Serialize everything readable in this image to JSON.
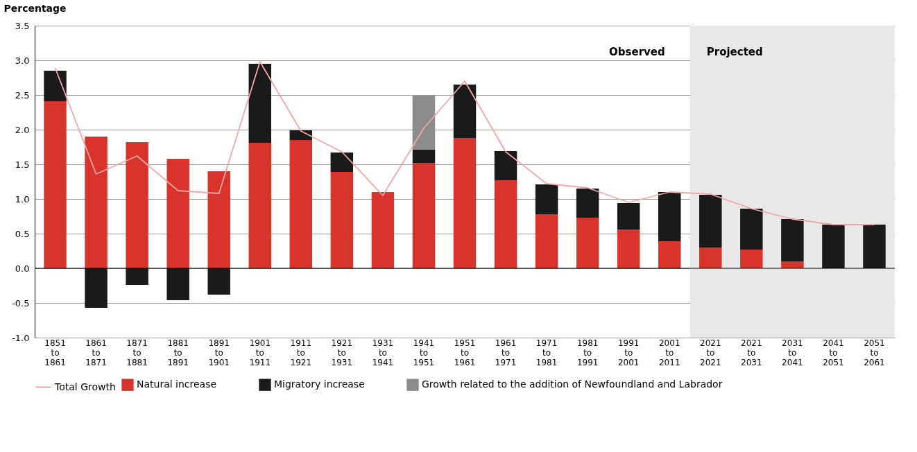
{
  "chart_data": {
    "type": "bar",
    "stacked": true,
    "ylabel": "Percentage",
    "categories": [
      "1851 to 1861",
      "1861 to 1871",
      "1871 to 1881",
      "1881 to 1891",
      "1891 to 1901",
      "1901 to 1911",
      "1911 to 1921",
      "1921 to 1931",
      "1931 to 1941",
      "1941 to 1951",
      "1951 to 1961",
      "1961 to 1971",
      "1971 to 1981",
      "1981 to 1991",
      "1991 to 2001",
      "2001 to 2011",
      "2021 to 2021",
      "2021 to 2031",
      "2031 to 2041",
      "2041 to 2051",
      "2051 to 2061"
    ],
    "series": [
      {
        "name": "Natural increase",
        "color": "#d9342b",
        "values": [
          2.41,
          1.9,
          1.82,
          1.58,
          1.4,
          1.81,
          1.85,
          1.39,
          1.1,
          1.52,
          1.88,
          1.27,
          0.78,
          0.73,
          0.56,
          0.39,
          0.3,
          0.27,
          0.1,
          null,
          null
        ]
      },
      {
        "name": "Migratory increase",
        "color": "#1a1a1a",
        "values": [
          0.44,
          -0.57,
          -0.24,
          -0.46,
          -0.38,
          1.14,
          0.14,
          0.28,
          null,
          0.19,
          0.77,
          0.42,
          0.43,
          0.42,
          0.38,
          0.71,
          0.76,
          0.59,
          0.61,
          0.63,
          0.63
        ]
      },
      {
        "name": "Growth related to the addition of Newfoundland and Labrador",
        "color": "#8c8c8c",
        "values": [
          null,
          null,
          null,
          null,
          null,
          null,
          null,
          null,
          null,
          0.78,
          null,
          null,
          null,
          null,
          null,
          null,
          null,
          null,
          null,
          null,
          null
        ]
      },
      {
        "name": "Total Growth",
        "type": "line",
        "color": "#f4a6a6",
        "values": [
          2.89,
          1.36,
          1.62,
          1.12,
          1.08,
          2.98,
          1.98,
          1.68,
          1.05,
          2.02,
          2.7,
          1.68,
          1.22,
          1.16,
          0.95,
          1.1,
          1.07,
          0.86,
          0.71,
          0.63,
          0.63
        ]
      }
    ],
    "ylim": [
      -1.0,
      3.5
    ],
    "yticks": [
      {
        "value": -1.0,
        "label": "-1.0"
      },
      {
        "value": -0.5,
        "label": "-0.5"
      },
      {
        "value": 0,
        "label": "0.0"
      },
      {
        "value": 0.5,
        "label": "0.5"
      },
      {
        "value": 1.0,
        "label": "1.0"
      },
      {
        "value": 1.5,
        "label": "1.5"
      },
      {
        "value": 2.0,
        "label": "2.0"
      },
      {
        "value": 2.5,
        "label": "2.5"
      },
      {
        "value": 3.0,
        "label": "3.0"
      },
      {
        "value": 3.5,
        "label": "3.5"
      }
    ],
    "grid": "y",
    "legend": "bottom",
    "bands": [
      {
        "axis": "x",
        "from": "2021 to 2021",
        "to": "2051 to 2061",
        "label": "Projected",
        "color": "#e8e8e8"
      }
    ],
    "annotations": [
      "Observed"
    ]
  }
}
